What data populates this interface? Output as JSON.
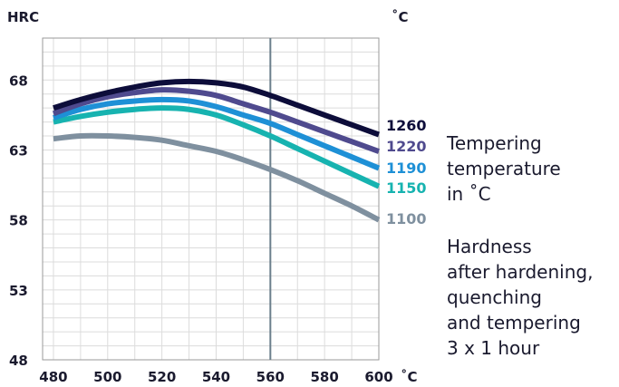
{
  "chart_data": {
    "type": "line",
    "y_unit": "HRC",
    "y2_unit": "˚C",
    "x_unit": "˚C",
    "xlim": [
      476,
      600
    ],
    "ylim": [
      48,
      71
    ],
    "x_ticks": [
      480,
      500,
      520,
      540,
      560,
      580,
      600
    ],
    "y_ticks": [
      48,
      53,
      58,
      63,
      68
    ],
    "grid": true,
    "reference_line_x": 560,
    "series": [
      {
        "name": "1260",
        "color": "#0d0d3a",
        "points": [
          [
            480,
            66.0
          ],
          [
            490,
            66.6
          ],
          [
            500,
            67.1
          ],
          [
            510,
            67.5
          ],
          [
            520,
            67.8
          ],
          [
            530,
            67.9
          ],
          [
            540,
            67.8
          ],
          [
            550,
            67.5
          ],
          [
            560,
            66.9
          ],
          [
            570,
            66.2
          ],
          [
            580,
            65.5
          ],
          [
            590,
            64.8
          ],
          [
            600,
            64.1
          ]
        ]
      },
      {
        "name": "1220",
        "color": "#4f4a8e",
        "points": [
          [
            480,
            65.6
          ],
          [
            490,
            66.3
          ],
          [
            500,
            66.8
          ],
          [
            510,
            67.1
          ],
          [
            520,
            67.3
          ],
          [
            530,
            67.2
          ],
          [
            540,
            66.9
          ],
          [
            550,
            66.3
          ],
          [
            560,
            65.7
          ],
          [
            570,
            65.0
          ],
          [
            580,
            64.3
          ],
          [
            590,
            63.6
          ],
          [
            600,
            62.9
          ]
        ]
      },
      {
        "name": "1190",
        "color": "#1e90d6",
        "points": [
          [
            480,
            65.3
          ],
          [
            490,
            65.9
          ],
          [
            500,
            66.3
          ],
          [
            510,
            66.5
          ],
          [
            520,
            66.6
          ],
          [
            530,
            66.5
          ],
          [
            540,
            66.1
          ],
          [
            550,
            65.5
          ],
          [
            560,
            64.9
          ],
          [
            570,
            64.1
          ],
          [
            580,
            63.3
          ],
          [
            590,
            62.5
          ],
          [
            600,
            61.7
          ]
        ]
      },
      {
        "name": "1150",
        "color": "#17b3b0",
        "points": [
          [
            480,
            65.0
          ],
          [
            490,
            65.4
          ],
          [
            500,
            65.7
          ],
          [
            510,
            65.9
          ],
          [
            520,
            66.0
          ],
          [
            530,
            65.9
          ],
          [
            540,
            65.5
          ],
          [
            550,
            64.8
          ],
          [
            560,
            64.0
          ],
          [
            570,
            63.1
          ],
          [
            580,
            62.2
          ],
          [
            590,
            61.3
          ],
          [
            600,
            60.4
          ]
        ]
      },
      {
        "name": "1100",
        "color": "#7f909f",
        "points": [
          [
            480,
            63.8
          ],
          [
            490,
            64.0
          ],
          [
            500,
            64.0
          ],
          [
            510,
            63.9
          ],
          [
            520,
            63.7
          ],
          [
            530,
            63.3
          ],
          [
            540,
            62.9
          ],
          [
            550,
            62.3
          ],
          [
            560,
            61.6
          ],
          [
            570,
            60.8
          ],
          [
            580,
            59.9
          ],
          [
            590,
            59.0
          ],
          [
            600,
            58.0
          ]
        ]
      }
    ]
  },
  "legend_note": {
    "line1": "Tempering",
    "line2": "temperature",
    "line3": "in ˚C",
    "line4": "Hardness",
    "line5": "after hardening,",
    "line6": "quenching",
    "line7": "and tempering",
    "line8": "3 x 1 hour"
  }
}
